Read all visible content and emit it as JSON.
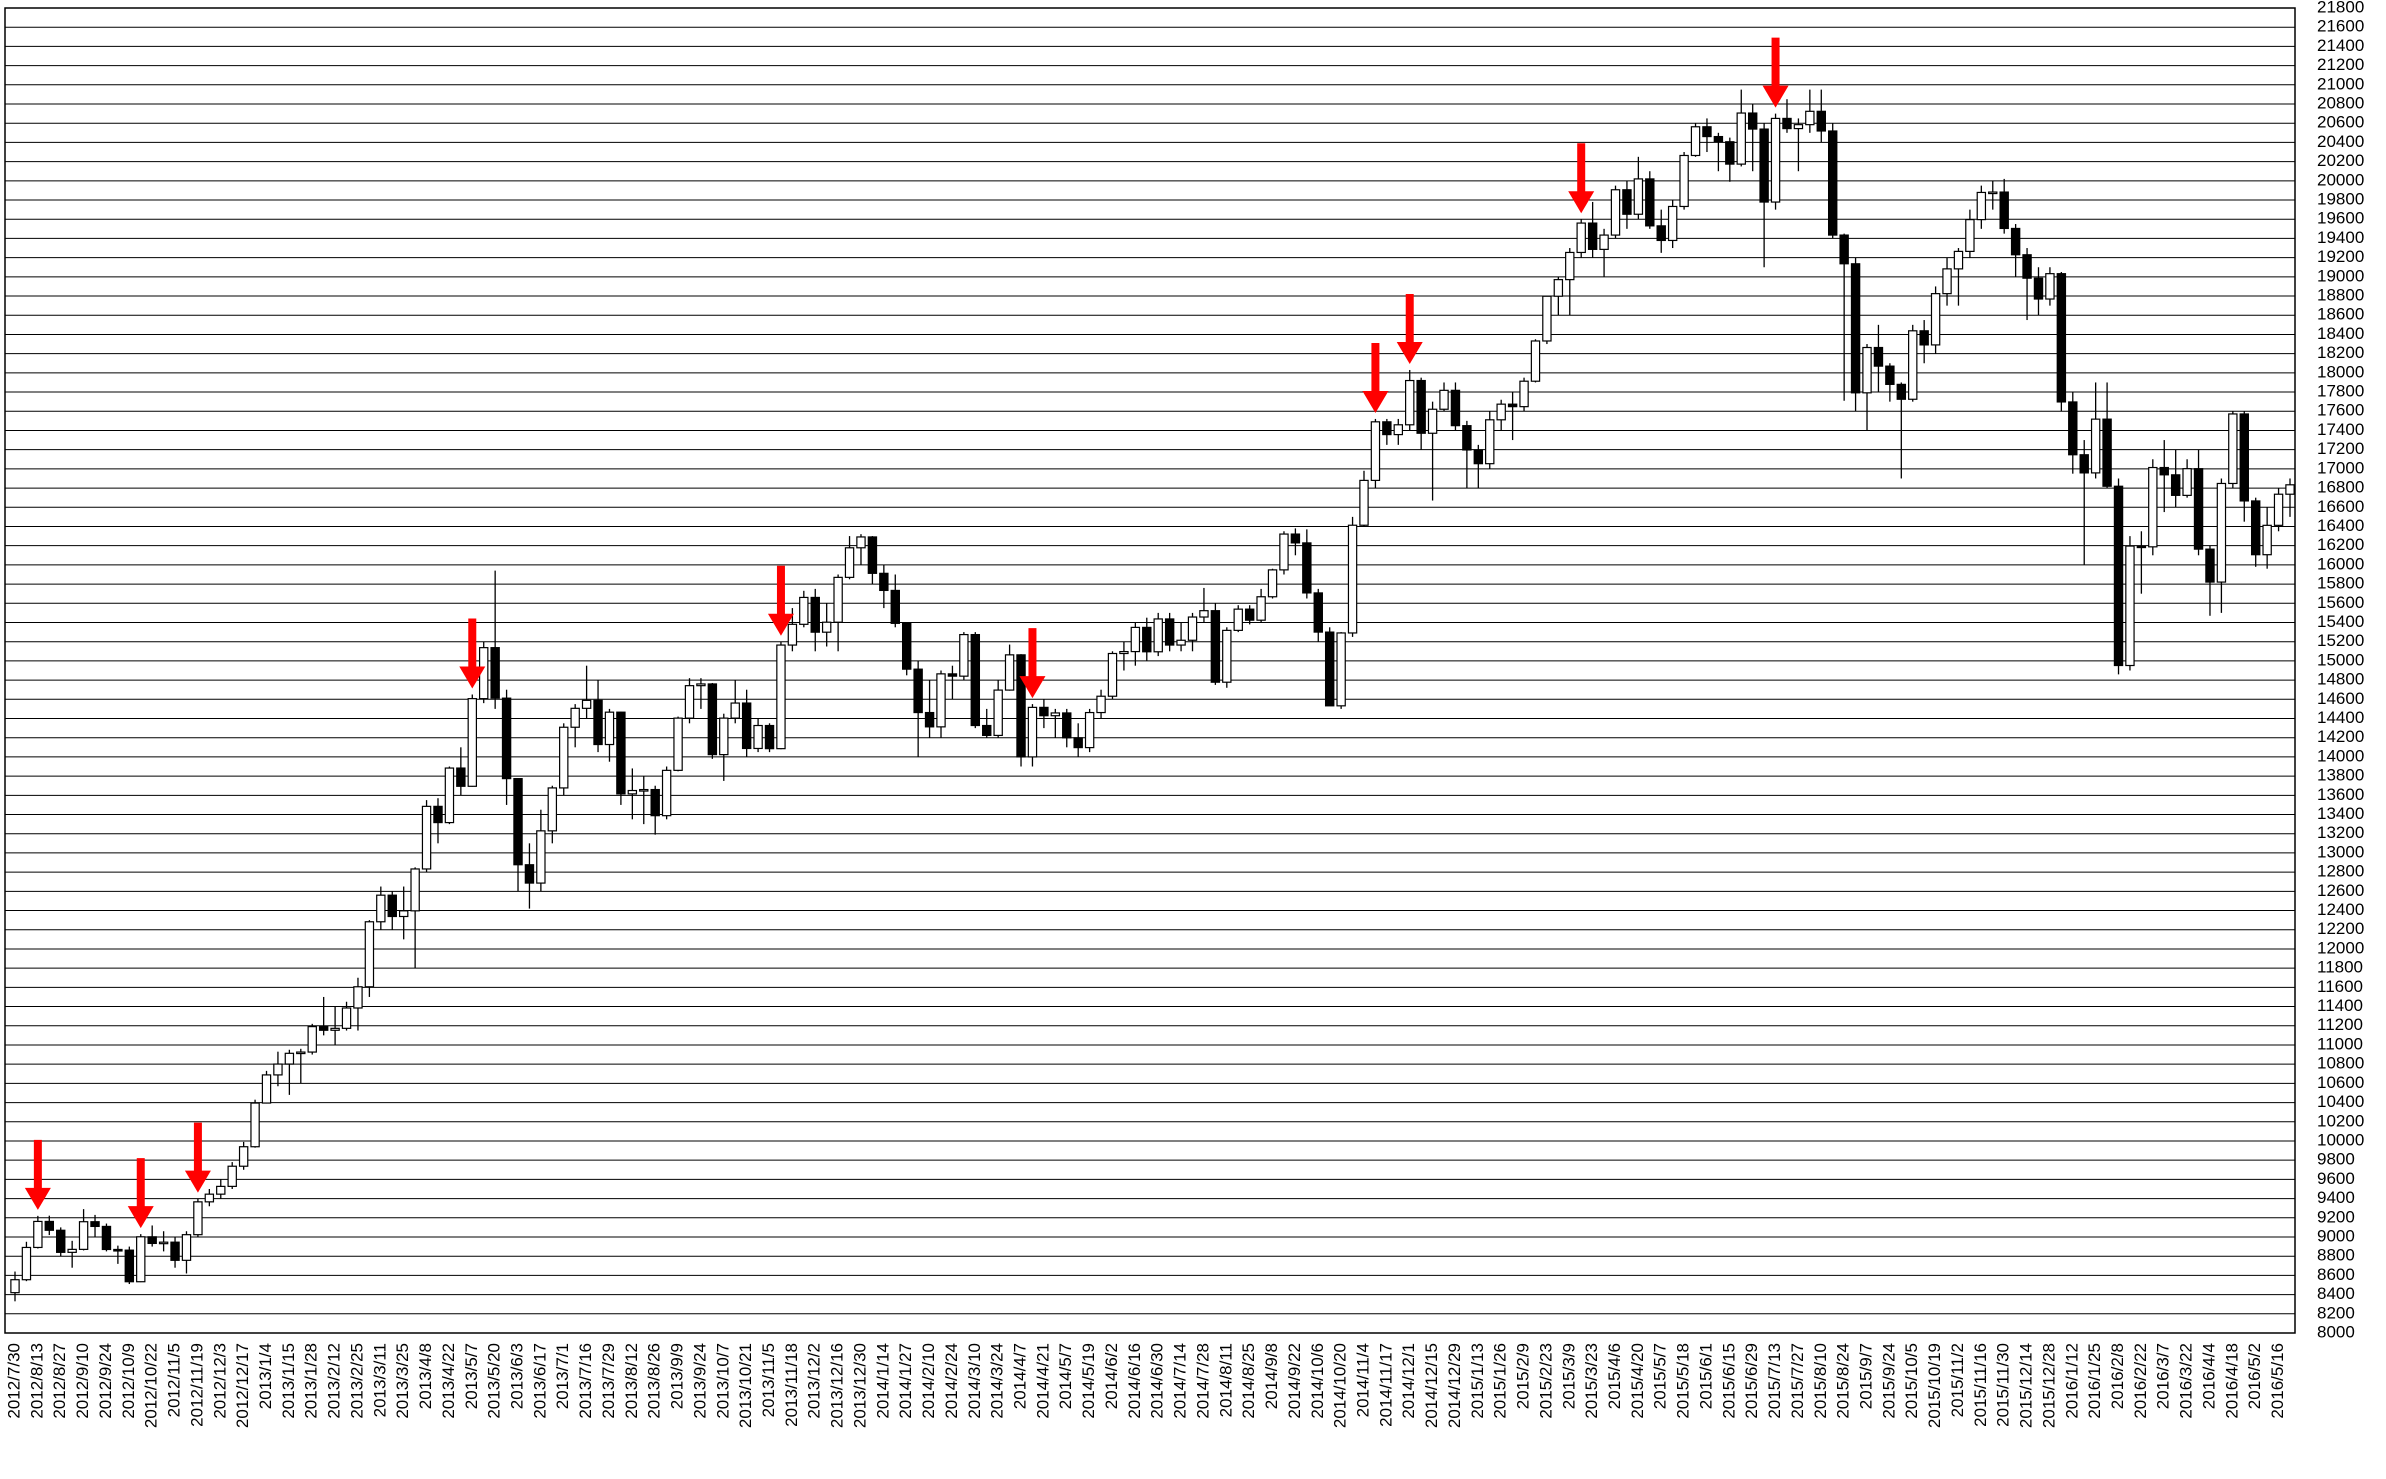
{
  "chart_data": {
    "type": "candlestick",
    "up_color": "#ffffff",
    "down_color": "#000000",
    "grid": true,
    "ylim": [
      8000,
      21800
    ],
    "yticks": [
      8000,
      8200,
      8400,
      8600,
      8800,
      9000,
      9200,
      9400,
      9600,
      9800,
      10000,
      10200,
      10400,
      10600,
      10800,
      11000,
      11200,
      11400,
      11600,
      11800,
      12000,
      12200,
      12400,
      12600,
      12800,
      13000,
      13200,
      13400,
      13600,
      13800,
      14000,
      14200,
      14400,
      14600,
      14800,
      15000,
      15200,
      15400,
      15600,
      15800,
      16000,
      16200,
      16400,
      16600,
      16800,
      17000,
      17200,
      17400,
      17600,
      17800,
      18000,
      18200,
      18400,
      18600,
      18800,
      19000,
      19200,
      19400,
      19600,
      19800,
      20000,
      20200,
      20400,
      20600,
      20800,
      21000,
      21200,
      21400,
      21600,
      21800
    ],
    "categories": [
      "2012/7/30",
      null,
      "2012/8/13",
      null,
      "2012/8/27",
      null,
      "2012/9/10",
      null,
      "2012/9/24",
      null,
      "2012/10/9",
      null,
      "2012/10/22",
      null,
      "2012/11/5",
      null,
      "2012/11/19",
      null,
      "2012/12/3",
      null,
      "2012/12/17",
      null,
      "2013/1/4",
      null,
      "2013/1/15",
      null,
      "2013/1/28",
      null,
      "2013/2/12",
      null,
      "2013/2/25",
      null,
      "2013/3/11",
      null,
      "2013/3/25",
      null,
      "2013/4/8",
      null,
      "2013/4/22",
      null,
      "2013/5/7",
      null,
      "2013/5/20",
      null,
      "2013/6/3",
      null,
      "2013/6/17",
      null,
      "2013/7/1",
      null,
      "2013/7/16",
      null,
      "2013/7/29",
      null,
      "2013/8/12",
      null,
      "2013/8/26",
      null,
      "2013/9/9",
      null,
      "2013/9/24",
      null,
      "2013/10/7",
      null,
      "2013/10/21",
      null,
      "2013/11/5",
      null,
      "2013/11/18",
      null,
      "2013/12/2",
      null,
      "2013/12/16",
      null,
      "2013/12/30",
      null,
      "2014/1/14",
      null,
      "2014/1/27",
      null,
      "2014/2/10",
      null,
      "2014/2/24",
      null,
      "2014/3/10",
      null,
      "2014/3/24",
      null,
      "2014/4/7",
      null,
      "2014/4/21",
      null,
      "2014/5/7",
      null,
      "2014/5/19",
      null,
      "2014/6/2",
      null,
      "2014/6/16",
      null,
      "2014/6/30",
      null,
      "2014/7/14",
      null,
      "2014/7/28",
      null,
      "2014/8/11",
      null,
      "2014/8/25",
      null,
      "2014/9/8",
      null,
      "2014/9/22",
      null,
      "2014/10/6",
      null,
      "2014/10/20",
      null,
      "2014/11/4",
      null,
      "2014/11/17",
      null,
      "2014/12/1",
      null,
      "2014/12/15",
      null,
      "2014/12/29",
      null,
      "2015/1/13",
      null,
      "2015/1/26",
      null,
      "2015/2/9",
      null,
      "2015/2/23",
      null,
      "2015/3/9",
      null,
      "2015/3/23",
      null,
      "2015/4/6",
      null,
      "2015/4/20",
      null,
      "2015/5/7",
      null,
      "2015/5/18",
      null,
      "2015/6/1",
      null,
      "2015/6/15",
      null,
      "2015/6/29",
      null,
      "2015/7/13",
      null,
      "2015/7/27",
      null,
      "2015/8/10",
      null,
      "2015/8/24",
      null,
      "2015/9/7",
      null,
      "2015/9/24",
      null,
      "2015/10/5",
      null,
      "2015/10/19",
      null,
      "2015/11/2",
      null,
      "2015/11/16",
      null,
      "2015/11/30",
      null,
      "2015/12/14",
      null,
      "2015/12/28",
      null,
      "2016/1/12",
      null,
      "2016/1/25",
      null,
      "2016/2/8",
      null,
      "2016/2/22",
      null,
      "2016/3/7",
      null,
      "2016/3/22",
      null,
      "2016/4/4",
      null,
      "2016/4/18",
      null,
      "2016/5/2",
      null,
      "2016/5/16",
      null
    ],
    "ohlc": [
      [
        8420,
        8640,
        8330,
        8555
      ],
      [
        8555,
        8950,
        8540,
        8891
      ],
      [
        8891,
        9220,
        8880,
        9162
      ],
      [
        9162,
        9222,
        9020,
        9070
      ],
      [
        9070,
        9100,
        8800,
        8840
      ],
      [
        8840,
        8960,
        8680,
        8871
      ],
      [
        8871,
        9290,
        8860,
        9159
      ],
      [
        9159,
        9230,
        9000,
        9110
      ],
      [
        9110,
        9140,
        8850,
        8870
      ],
      [
        8870,
        8910,
        8720,
        8863
      ],
      [
        8863,
        8900,
        8510,
        8534
      ],
      [
        8534,
        9030,
        8530,
        9002
      ],
      [
        9002,
        9120,
        8900,
        8933
      ],
      [
        8933,
        9060,
        8850,
        8946
      ],
      [
        8946,
        9000,
        8680,
        8757
      ],
      [
        8757,
        9060,
        8620,
        9024
      ],
      [
        9024,
        9400,
        9000,
        9366
      ],
      [
        9366,
        9500,
        9320,
        9446
      ],
      [
        9446,
        9600,
        9400,
        9527
      ],
      [
        9527,
        9780,
        9500,
        9737
      ],
      [
        9737,
        9990,
        9700,
        9940
      ],
      [
        9940,
        10430,
        9930,
        10395
      ],
      [
        10395,
        10730,
        10390,
        10688
      ],
      [
        10688,
        10930,
        10570,
        10801
      ],
      [
        10801,
        10950,
        10480,
        10913
      ],
      [
        10913,
        10960,
        10600,
        10926
      ],
      [
        10926,
        11220,
        10900,
        11191
      ],
      [
        11191,
        11500,
        11100,
        11153
      ],
      [
        11153,
        11400,
        11000,
        11173
      ],
      [
        11173,
        11450,
        11150,
        11385
      ],
      [
        11385,
        11700,
        11150,
        11606
      ],
      [
        11606,
        12300,
        11500,
        12283
      ],
      [
        12283,
        12650,
        12200,
        12560
      ],
      [
        12560,
        12600,
        12200,
        12338
      ],
      [
        12338,
        12650,
        12100,
        12397
      ],
      [
        12397,
        12850,
        11800,
        12833
      ],
      [
        12833,
        13550,
        12800,
        13485
      ],
      [
        13485,
        13570,
        13100,
        13316
      ],
      [
        13316,
        13900,
        13300,
        13884
      ],
      [
        13884,
        14100,
        13600,
        13694
      ],
      [
        13694,
        14650,
        13690,
        14607
      ],
      [
        14607,
        15200,
        14560,
        15138
      ],
      [
        15138,
        15940,
        14500,
        14612
      ],
      [
        14612,
        14700,
        13500,
        13774
      ],
      [
        13774,
        13780,
        12600,
        12877
      ],
      [
        12877,
        13100,
        12420,
        12686
      ],
      [
        12686,
        13450,
        12600,
        13230
      ],
      [
        13230,
        13700,
        13100,
        13677
      ],
      [
        13677,
        14350,
        13600,
        14309
      ],
      [
        14309,
        14550,
        14100,
        14506
      ],
      [
        14506,
        14950,
        14400,
        14589
      ],
      [
        14589,
        14800,
        14050,
        14129
      ],
      [
        14129,
        14500,
        13950,
        14466
      ],
      [
        14466,
        14470,
        13500,
        13615
      ],
      [
        13615,
        13880,
        13350,
        13650
      ],
      [
        13650,
        13800,
        13300,
        13660
      ],
      [
        13660,
        13700,
        13190,
        13388
      ],
      [
        13388,
        13900,
        13350,
        13860
      ],
      [
        13860,
        14420,
        13850,
        14404
      ],
      [
        14404,
        14820,
        14350,
        14742
      ],
      [
        14742,
        14820,
        14500,
        14760
      ],
      [
        14760,
        14770,
        13980,
        14024
      ],
      [
        14024,
        14450,
        13750,
        14404
      ],
      [
        14404,
        14800,
        14350,
        14561
      ],
      [
        14561,
        14700,
        14000,
        14088
      ],
      [
        14088,
        14400,
        14050,
        14327
      ],
      [
        14327,
        14350,
        14050,
        14086
      ],
      [
        14086,
        15200,
        14080,
        15165
      ],
      [
        15165,
        15550,
        15100,
        15381
      ],
      [
        15381,
        15730,
        15350,
        15661
      ],
      [
        15661,
        15750,
        15100,
        15299
      ],
      [
        15299,
        15600,
        15150,
        15403
      ],
      [
        15403,
        15900,
        15100,
        15870
      ],
      [
        15870,
        16300,
        15850,
        16178
      ],
      [
        16178,
        16320,
        16000,
        16291
      ],
      [
        16291,
        16300,
        15800,
        15912
      ],
      [
        15912,
        16000,
        15550,
        15734
      ],
      [
        15734,
        15900,
        15350,
        15391
      ],
      [
        15391,
        15400,
        14850,
        14914
      ],
      [
        14914,
        15000,
        14000,
        14462
      ],
      [
        14462,
        14800,
        14200,
        14313
      ],
      [
        14313,
        14900,
        14200,
        14865
      ],
      [
        14865,
        14950,
        14600,
        14841
      ],
      [
        14841,
        15300,
        14800,
        15274
      ],
      [
        15274,
        15300,
        14300,
        14327
      ],
      [
        14327,
        14500,
        14200,
        14224
      ],
      [
        14224,
        14800,
        14200,
        14696
      ],
      [
        14696,
        15170,
        14690,
        15063
      ],
      [
        15063,
        15070,
        13900,
        14000
      ],
      [
        14000,
        14550,
        13900,
        14516
      ],
      [
        14516,
        14600,
        14300,
        14429
      ],
      [
        14429,
        14500,
        14200,
        14458
      ],
      [
        14458,
        14500,
        14100,
        14199
      ],
      [
        14199,
        14350,
        14000,
        14097
      ],
      [
        14097,
        14500,
        14050,
        14462
      ],
      [
        14462,
        14700,
        14400,
        14632
      ],
      [
        14632,
        15100,
        14600,
        15077
      ],
      [
        15077,
        15200,
        14900,
        15097
      ],
      [
        15097,
        15400,
        14950,
        15349
      ],
      [
        15349,
        15450,
        15000,
        15095
      ],
      [
        15095,
        15500,
        15050,
        15437
      ],
      [
        15437,
        15500,
        15100,
        15165
      ],
      [
        15165,
        15400,
        15100,
        15215
      ],
      [
        15215,
        15500,
        15100,
        15457
      ],
      [
        15457,
        15760,
        15400,
        15523
      ],
      [
        15523,
        15600,
        14750,
        14778
      ],
      [
        14778,
        15350,
        14720,
        15318
      ],
      [
        15318,
        15580,
        15300,
        15539
      ],
      [
        15539,
        15580,
        15380,
        15424
      ],
      [
        15424,
        15750,
        15400,
        15668
      ],
      [
        15668,
        15960,
        15650,
        15948
      ],
      [
        15948,
        16350,
        15900,
        16321
      ],
      [
        16321,
        16380,
        16100,
        16229
      ],
      [
        16229,
        16370,
        15650,
        15708
      ],
      [
        15708,
        15750,
        15200,
        15300
      ],
      [
        15300,
        15350,
        14530,
        14532
      ],
      [
        14532,
        15300,
        14500,
        15291
      ],
      [
        15291,
        16500,
        15250,
        16413
      ],
      [
        16413,
        16980,
        16400,
        16880
      ],
      [
        16880,
        17520,
        16800,
        17490
      ],
      [
        17490,
        17520,
        17250,
        17357
      ],
      [
        17357,
        17520,
        17250,
        17459
      ],
      [
        17459,
        18030,
        17400,
        17920
      ],
      [
        17920,
        17950,
        17200,
        17371
      ],
      [
        17371,
        17700,
        16670,
        17621
      ],
      [
        17621,
        17900,
        17600,
        17818
      ],
      [
        17818,
        17900,
        17400,
        17450
      ],
      [
        17450,
        17500,
        16800,
        17197
      ],
      [
        17197,
        17250,
        16800,
        17054
      ],
      [
        17054,
        17600,
        17000,
        17511
      ],
      [
        17511,
        17720,
        17400,
        17674
      ],
      [
        17674,
        17800,
        17300,
        17648
      ],
      [
        17648,
        17950,
        17600,
        17913
      ],
      [
        17913,
        18350,
        17900,
        18332
      ],
      [
        18332,
        18800,
        18300,
        18798
      ],
      [
        18798,
        19000,
        18600,
        18971
      ],
      [
        18971,
        19300,
        18600,
        19254
      ],
      [
        19254,
        19600,
        19200,
        19560
      ],
      [
        19560,
        19780,
        19200,
        19286
      ],
      [
        19286,
        19500,
        19000,
        19435
      ],
      [
        19435,
        19950,
        19400,
        19907
      ],
      [
        19907,
        20000,
        19500,
        19652
      ],
      [
        19652,
        20250,
        19600,
        20020
      ],
      [
        20020,
        20100,
        19500,
        19531
      ],
      [
        19531,
        19700,
        19250,
        19379
      ],
      [
        19379,
        19800,
        19300,
        19733
      ],
      [
        19733,
        20300,
        19700,
        20264
      ],
      [
        20264,
        20600,
        20250,
        20563
      ],
      [
        20563,
        20650,
        20300,
        20461
      ],
      [
        20461,
        20500,
        20100,
        20407
      ],
      [
        20407,
        20450,
        19990,
        20174
      ],
      [
        20174,
        20950,
        20150,
        20706
      ],
      [
        20706,
        20800,
        20100,
        20539
      ],
      [
        20539,
        20600,
        19100,
        19779
      ],
      [
        19779,
        20700,
        19700,
        20650
      ],
      [
        20650,
        20850,
        20500,
        20544
      ],
      [
        20544,
        20650,
        20100,
        20585
      ],
      [
        20585,
        20950,
        20500,
        20724
      ],
      [
        20724,
        20950,
        20400,
        20519
      ],
      [
        20519,
        20600,
        19400,
        19435
      ],
      [
        19435,
        19450,
        17710,
        19136
      ],
      [
        19136,
        19200,
        17600,
        17792
      ],
      [
        17792,
        18300,
        17400,
        18264
      ],
      [
        18264,
        18500,
        17800,
        18070
      ],
      [
        18070,
        18100,
        17700,
        17880
      ],
      [
        17880,
        17900,
        16900,
        17725
      ],
      [
        17725,
        18500,
        17700,
        18438
      ],
      [
        18438,
        18550,
        18100,
        18291
      ],
      [
        18291,
        18900,
        18200,
        18825
      ],
      [
        18825,
        19200,
        18700,
        19083
      ],
      [
        19083,
        19300,
        18700,
        19265
      ],
      [
        19265,
        19700,
        19200,
        19596
      ],
      [
        19596,
        19950,
        19500,
        19879
      ],
      [
        19879,
        20000,
        19700,
        19883
      ],
      [
        19883,
        20020,
        19450,
        19504
      ],
      [
        19504,
        19550,
        19000,
        19230
      ],
      [
        19230,
        19300,
        18550,
        18986
      ],
      [
        18986,
        19100,
        18600,
        18769
      ],
      [
        18769,
        19100,
        18700,
        19033
      ],
      [
        19033,
        19050,
        17600,
        17697
      ],
      [
        17697,
        17800,
        16950,
        17147
      ],
      [
        17147,
        17300,
        16000,
        16958
      ],
      [
        16958,
        17900,
        16900,
        17518
      ],
      [
        17518,
        17900,
        16800,
        16819
      ],
      [
        16819,
        16900,
        14860,
        14952
      ],
      [
        14952,
        16300,
        14900,
        16196
      ],
      [
        16196,
        16350,
        15700,
        16188
      ],
      [
        16188,
        17100,
        16100,
        17014
      ],
      [
        17014,
        17300,
        16550,
        16938
      ],
      [
        16938,
        17200,
        16600,
        16724
      ],
      [
        16724,
        17100,
        16700,
        17002
      ],
      [
        17002,
        17200,
        16100,
        16164
      ],
      [
        16164,
        16200,
        15470,
        15821
      ],
      [
        15821,
        16900,
        15500,
        16848
      ],
      [
        16848,
        17600,
        16800,
        17572
      ],
      [
        17572,
        17600,
        16450,
        16666
      ],
      [
        16666,
        16700,
        15980,
        16106
      ],
      [
        16106,
        16600,
        15960,
        16412
      ],
      [
        16412,
        16800,
        16350,
        16736
      ],
      [
        16736,
        16900,
        16500,
        16834
      ]
    ],
    "arrow_color": "#ff0000"
  }
}
